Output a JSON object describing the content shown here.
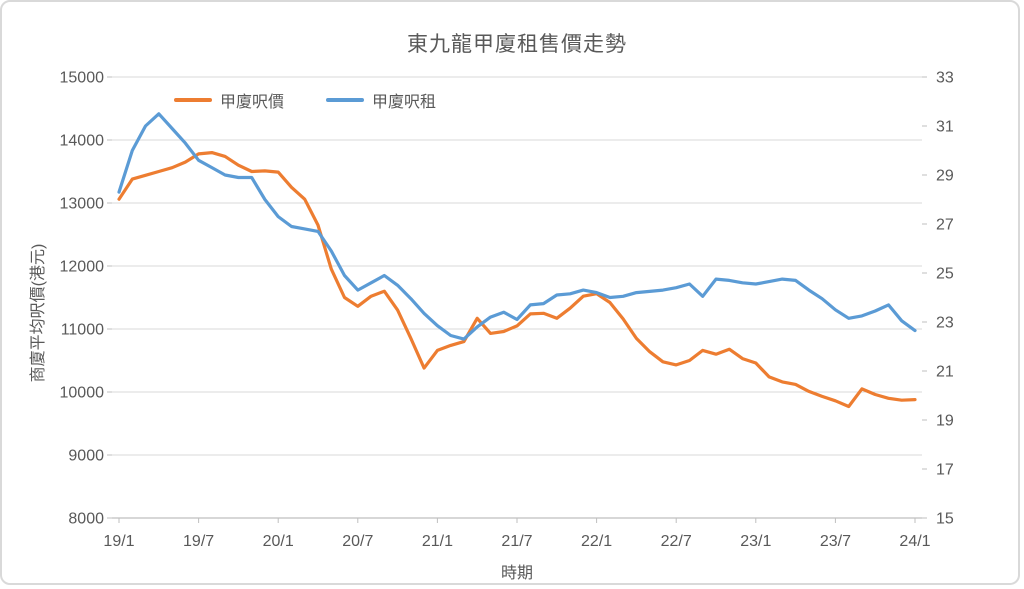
{
  "chart_data": {
    "type": "line",
    "title": "東九龍甲廈租售價走勢",
    "xlabel": "時期",
    "ylabel_left": "商廈平均呎價(港元)",
    "legend_position": "top",
    "grid": "horizontal",
    "colors": {
      "price_series": "#ED7D31",
      "rent_series": "#5B9BD5",
      "gridline": "#D9D9D9",
      "axis_line": "#BFBFBF",
      "text": "#595959"
    },
    "y_left_axis": {
      "min": 8000,
      "max": 15000,
      "step": 1000,
      "ticks": [
        15000,
        14000,
        13000,
        12000,
        11000,
        10000,
        9000,
        8000
      ]
    },
    "y_right_axis": {
      "min": 15,
      "max": 33,
      "step": 2,
      "ticks": [
        33,
        31,
        29,
        27,
        25,
        23,
        21,
        19,
        17,
        15
      ]
    },
    "x_tick_labels": [
      "19/1",
      "19/7",
      "20/1",
      "20/7",
      "21/1",
      "21/7",
      "22/1",
      "22/7",
      "23/1",
      "23/7",
      "24/1"
    ],
    "categories": [
      "19/1",
      "19/2",
      "19/3",
      "19/4",
      "19/5",
      "19/6",
      "19/7",
      "19/8",
      "19/9",
      "19/10",
      "19/11",
      "19/12",
      "20/1",
      "20/2",
      "20/3",
      "20/4",
      "20/5",
      "20/6",
      "20/7",
      "20/8",
      "20/9",
      "20/10",
      "20/11",
      "20/12",
      "21/1",
      "21/2",
      "21/3",
      "21/4",
      "21/5",
      "21/6",
      "21/7",
      "21/8",
      "21/9",
      "21/10",
      "21/11",
      "21/12",
      "22/1",
      "22/2",
      "22/3",
      "22/4",
      "22/5",
      "22/6",
      "22/7",
      "22/8",
      "22/9",
      "22/10",
      "22/11",
      "22/12",
      "23/1",
      "23/2",
      "23/3",
      "23/4",
      "23/5",
      "23/6",
      "23/7",
      "23/8",
      "23/9",
      "23/10",
      "23/11",
      "23/12",
      "24/1"
    ],
    "series": [
      {
        "name": "甲廈呎價",
        "axis": "left",
        "values": [
          13060,
          13380,
          13440,
          13500,
          13560,
          13650,
          13780,
          13800,
          13740,
          13600,
          13500,
          13510,
          13490,
          13250,
          13060,
          12650,
          11950,
          11500,
          11360,
          11520,
          11600,
          11300,
          10850,
          10380,
          10660,
          10740,
          10800,
          11170,
          10930,
          10960,
          11050,
          11240,
          11250,
          11170,
          11330,
          11520,
          11560,
          11420,
          11160,
          10850,
          10640,
          10480,
          10430,
          10500,
          10660,
          10600,
          10680,
          10530,
          10460,
          10240,
          10160,
          10120,
          10010,
          9930,
          9860,
          9770,
          10050,
          9960,
          9900,
          9870,
          9880
        ]
      },
      {
        "name": "甲廈呎租",
        "axis": "right",
        "values": [
          28.3,
          30.0,
          31.0,
          31.5,
          30.9,
          30.3,
          29.6,
          29.3,
          29.0,
          28.9,
          28.9,
          28.0,
          27.3,
          26.9,
          26.8,
          26.7,
          25.9,
          24.9,
          24.3,
          24.6,
          24.9,
          24.5,
          23.95,
          23.35,
          22.85,
          22.45,
          22.3,
          22.8,
          23.2,
          23.4,
          23.1,
          23.7,
          23.75,
          24.1,
          24.15,
          24.3,
          24.2,
          24.0,
          24.05,
          24.2,
          24.25,
          24.3,
          24.4,
          24.55,
          24.05,
          24.75,
          24.7,
          24.6,
          24.55,
          24.65,
          24.75,
          24.7,
          24.3,
          23.95,
          23.5,
          23.15,
          23.25,
          23.45,
          23.7,
          23.05,
          22.65
        ]
      }
    ]
  }
}
